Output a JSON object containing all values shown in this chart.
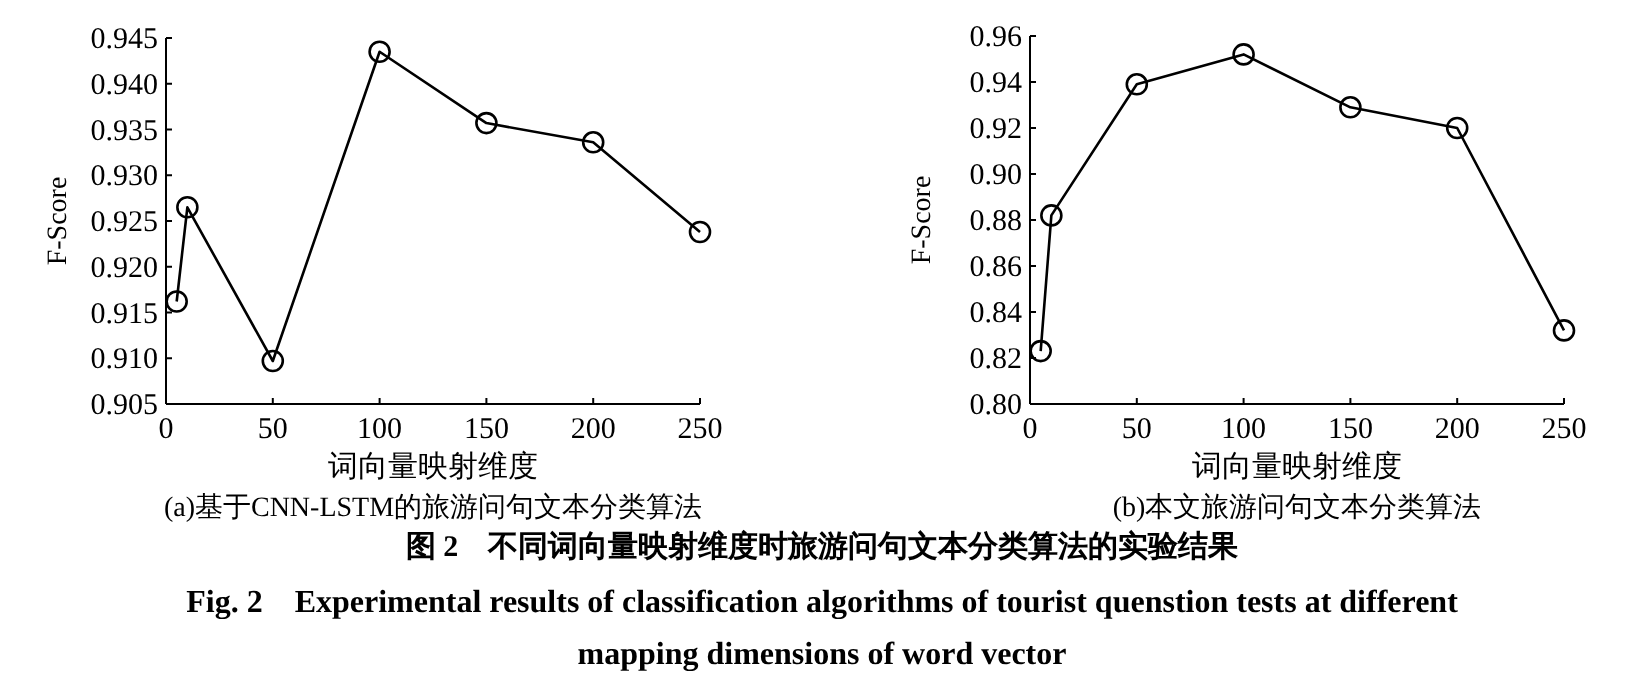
{
  "chart_data": [
    {
      "type": "line",
      "title": "(a)基于CNN-LSTM的旅游问句文本分类算法",
      "xlabel": "词向量映射维度",
      "ylabel": "F-Score",
      "x": [
        5,
        10,
        50,
        100,
        150,
        200,
        250
      ],
      "marker": "circle",
      "series": [
        {
          "color": "#000000",
          "values": [
            0.9162,
            0.9265,
            0.9097,
            0.9435,
            0.9357,
            0.9336,
            0.9238
          ]
        }
      ],
      "xlim": [
        0,
        250
      ],
      "xticks": [
        0,
        50,
        100,
        150,
        200,
        250
      ],
      "ylim": [
        0.905,
        0.945
      ],
      "yticks": [
        {
          "value": 0.905,
          "label": "0.905"
        },
        {
          "value": 0.91,
          "label": "0.910"
        },
        {
          "value": 0.915,
          "label": "0.915"
        },
        {
          "value": 0.92,
          "label": "0.920"
        },
        {
          "value": 0.925,
          "label": "0.925"
        },
        {
          "value": 0.93,
          "label": "0.930"
        },
        {
          "value": 0.935,
          "label": "0.935"
        },
        {
          "value": 0.94,
          "label": "0.940"
        },
        {
          "value": 0.945,
          "label": "0.945"
        }
      ],
      "annotations": [
        "图 2　不同词向量映射维度时旅游问句文本分类算法的实验结果",
        "Fig. 2　Experimental results of classification algorithms of tourist quenstion tests at different",
        "mapping dimensions of word vector"
      ]
    },
    {
      "type": "line",
      "title": "(b)本文旅游问句文本分类算法",
      "xlabel": "词向量映射维度",
      "ylabel": "F-Score",
      "x": [
        5,
        10,
        50,
        100,
        150,
        200,
        250
      ],
      "marker": "circle",
      "series": [
        {
          "color": "#000000",
          "values": [
            0.823,
            0.882,
            0.939,
            0.952,
            0.929,
            0.92,
            0.832
          ]
        }
      ],
      "xlim": [
        0,
        250
      ],
      "xticks": [
        0,
        50,
        100,
        150,
        200,
        250
      ],
      "ylim": [
        0.8,
        0.96
      ],
      "yticks": [
        {
          "value": 0.8,
          "label": "0.80"
        },
        {
          "value": 0.82,
          "label": "0.82"
        },
        {
          "value": 0.84,
          "label": "0.84"
        },
        {
          "value": 0.86,
          "label": "0.86"
        },
        {
          "value": 0.88,
          "label": "0.88"
        },
        {
          "value": 0.9,
          "label": "0.90"
        },
        {
          "value": 0.92,
          "label": "0.92"
        },
        {
          "value": 0.94,
          "label": "0.94"
        },
        {
          "value": 0.96,
          "label": "0.96"
        }
      ]
    }
  ]
}
